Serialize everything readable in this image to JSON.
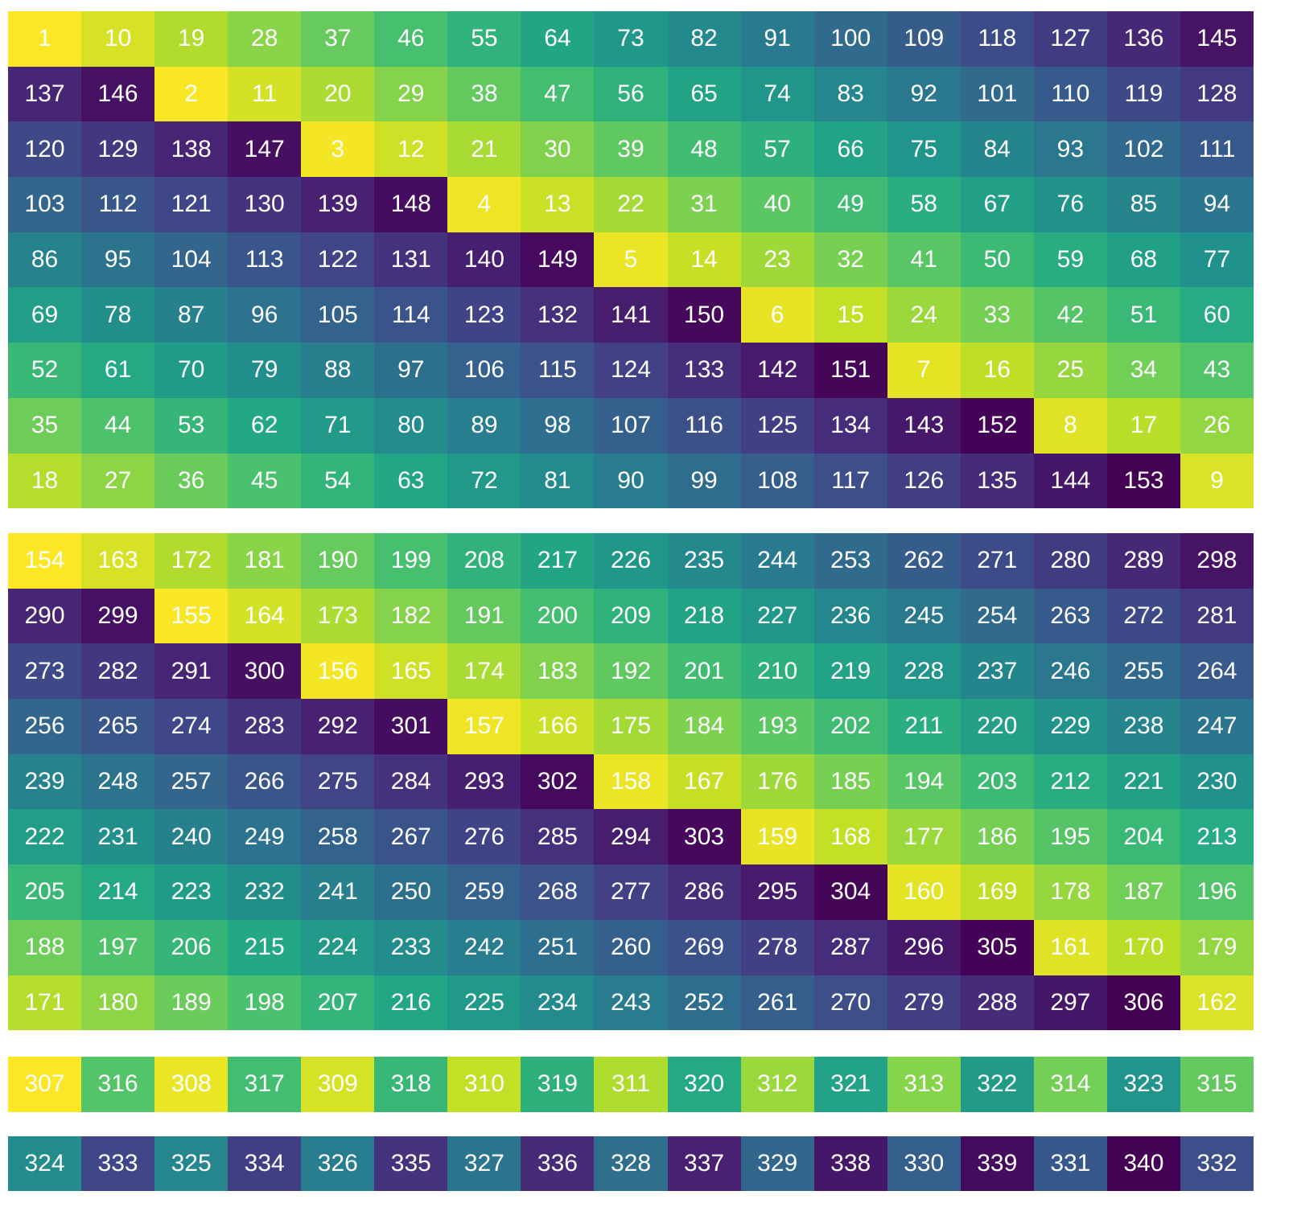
{
  "colormap": "viridis_r",
  "tables": [
    {
      "rows": [
        [
          1,
          10,
          19,
          28,
          37,
          46,
          55,
          64,
          73,
          82,
          91,
          100,
          109,
          118,
          127,
          136,
          145
        ],
        [
          137,
          146,
          2,
          11,
          20,
          29,
          38,
          47,
          56,
          65,
          74,
          83,
          92,
          101,
          110,
          119,
          128
        ],
        [
          120,
          129,
          138,
          147,
          3,
          12,
          21,
          30,
          39,
          48,
          57,
          66,
          75,
          84,
          93,
          102,
          111
        ],
        [
          103,
          112,
          121,
          130,
          139,
          148,
          4,
          13,
          22,
          31,
          40,
          49,
          58,
          67,
          76,
          85,
          94
        ],
        [
          86,
          95,
          104,
          113,
          122,
          131,
          140,
          149,
          5,
          14,
          23,
          32,
          41,
          50,
          59,
          68,
          77
        ],
        [
          69,
          78,
          87,
          96,
          105,
          114,
          123,
          132,
          141,
          150,
          6,
          15,
          24,
          33,
          42,
          51,
          60
        ],
        [
          52,
          61,
          70,
          79,
          88,
          97,
          106,
          115,
          124,
          133,
          142,
          151,
          7,
          16,
          25,
          34,
          43
        ],
        [
          35,
          44,
          53,
          62,
          71,
          80,
          89,
          98,
          107,
          116,
          125,
          134,
          143,
          152,
          8,
          17,
          26
        ],
        [
          18,
          27,
          36,
          45,
          54,
          63,
          72,
          81,
          90,
          99,
          108,
          117,
          126,
          135,
          144,
          153,
          9
        ]
      ]
    },
    {
      "rows": [
        [
          154,
          163,
          172,
          181,
          190,
          199,
          208,
          217,
          226,
          235,
          244,
          253,
          262,
          271,
          280,
          289,
          298
        ],
        [
          290,
          299,
          155,
          164,
          173,
          182,
          191,
          200,
          209,
          218,
          227,
          236,
          245,
          254,
          263,
          272,
          281
        ],
        [
          273,
          282,
          291,
          300,
          156,
          165,
          174,
          183,
          192,
          201,
          210,
          219,
          228,
          237,
          246,
          255,
          264
        ],
        [
          256,
          265,
          274,
          283,
          292,
          301,
          157,
          166,
          175,
          184,
          193,
          202,
          211,
          220,
          229,
          238,
          247
        ],
        [
          239,
          248,
          257,
          266,
          275,
          284,
          293,
          302,
          158,
          167,
          176,
          185,
          194,
          203,
          212,
          221,
          230
        ],
        [
          222,
          231,
          240,
          249,
          258,
          267,
          276,
          285,
          294,
          303,
          159,
          168,
          177,
          186,
          195,
          204,
          213
        ],
        [
          205,
          214,
          223,
          232,
          241,
          250,
          259,
          268,
          277,
          286,
          295,
          304,
          160,
          169,
          178,
          187,
          196
        ],
        [
          188,
          197,
          206,
          215,
          224,
          233,
          242,
          251,
          260,
          269,
          278,
          287,
          296,
          305,
          161,
          170,
          179
        ],
        [
          171,
          180,
          189,
          198,
          207,
          216,
          225,
          234,
          243,
          252,
          261,
          270,
          279,
          288,
          297,
          306,
          162
        ]
      ]
    },
    {
      "rows": [
        [
          307,
          316,
          308,
          317,
          309,
          318,
          310,
          319,
          311,
          320,
          312,
          321,
          313,
          322,
          314,
          323,
          315
        ],
        [
          324,
          333,
          325,
          334,
          326,
          335,
          327,
          336,
          328,
          337,
          329,
          338,
          330,
          339,
          331,
          340,
          332
        ]
      ]
    }
  ]
}
